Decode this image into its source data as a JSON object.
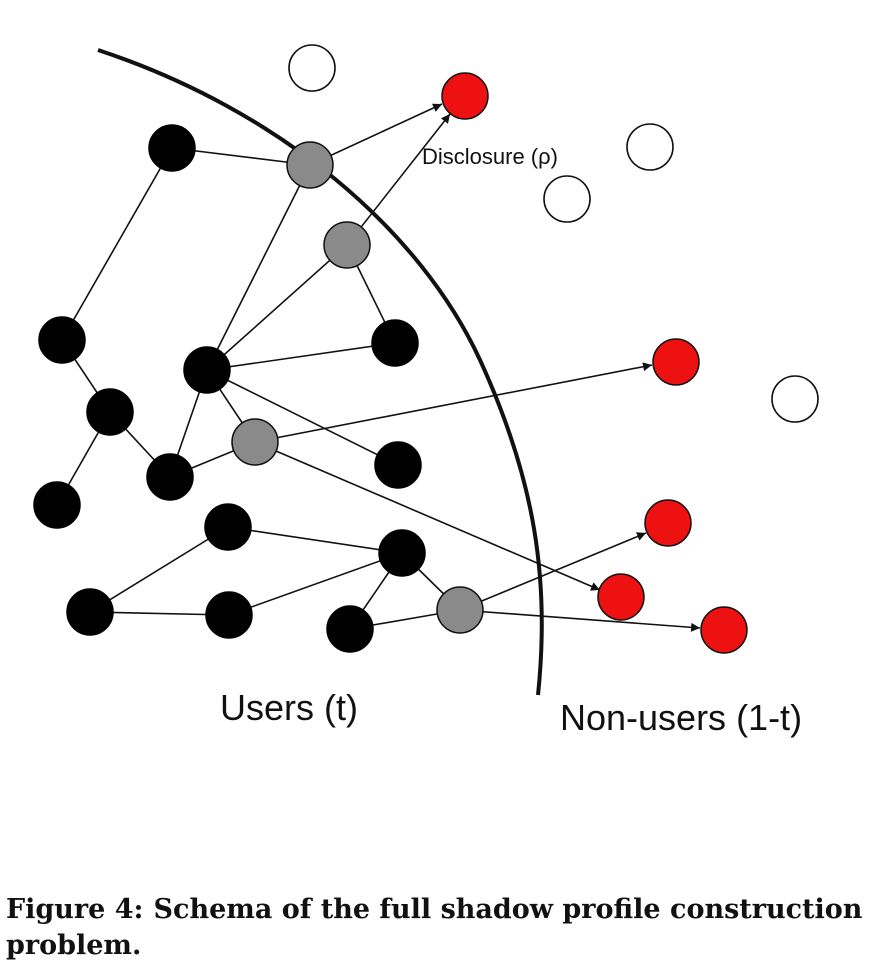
{
  "diagram": {
    "label_disclosure": "Disclosure (ρ)",
    "label_users": "Users (t)",
    "label_nonusers": "Non-users (1-t)",
    "colors": {
      "user": "#000000",
      "bridge_user": "#8a8a8a",
      "disclosed_nonuser": "#ee1111",
      "hidden_nonuser": "#ffffff",
      "edge": "#111111"
    }
  },
  "caption": {
    "prefix": "Figure 4:",
    "text": "Schema of the full shadow profile construction problem."
  }
}
